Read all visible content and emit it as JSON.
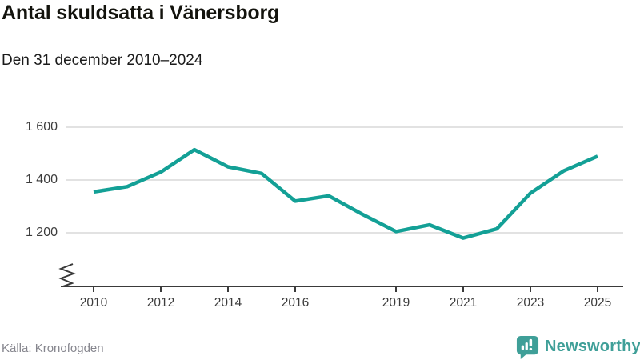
{
  "header": {
    "title": "Antal skuldsatta i Vänersborg",
    "subtitle": "Den 31 december 2010–2024"
  },
  "chart_data": {
    "type": "line",
    "title": "Antal skuldsatta i Vänersborg",
    "subtitle": "Den 31 december 2010–2024",
    "x": [
      2010,
      2011,
      2012,
      2013,
      2014,
      2015,
      2016,
      2017,
      2018,
      2019,
      2020,
      2021,
      2022,
      2023,
      2024,
      2025
    ],
    "values": [
      1355,
      1375,
      1430,
      1515,
      1450,
      1425,
      1320,
      1340,
      1270,
      1205,
      1230,
      1180,
      1215,
      1350,
      1435,
      1490
    ],
    "series_name": "Antal skuldsatta",
    "x_ticks": [
      {
        "year": 2010,
        "label": "2010"
      },
      {
        "year": 2012,
        "label": "2012"
      },
      {
        "year": 2014,
        "label": "2014"
      },
      {
        "year": 2016,
        "label": "2016"
      },
      {
        "year": 2019,
        "label": "2019"
      },
      {
        "year": 2021,
        "label": "2021"
      },
      {
        "year": 2023,
        "label": "2023"
      },
      {
        "year": 2025,
        "label": "2025"
      }
    ],
    "y_ticks": [
      {
        "value": 1600,
        "label": "1 600"
      },
      {
        "value": 1400,
        "label": "1 400"
      },
      {
        "value": 1200,
        "label": "1 200"
      }
    ],
    "ylim": [
      1150,
      1640
    ],
    "grid": "horizontal",
    "axis_break": true,
    "legend": "none",
    "xlabel": "",
    "ylabel": ""
  },
  "footer": {
    "source": "Källa: Kronofogden",
    "brand": "Newsworthy"
  },
  "colors": {
    "line": "#13a096",
    "brand_teal": "#3f9f98",
    "grid": "#e2e2e2",
    "axis": "#3a3a3a"
  }
}
